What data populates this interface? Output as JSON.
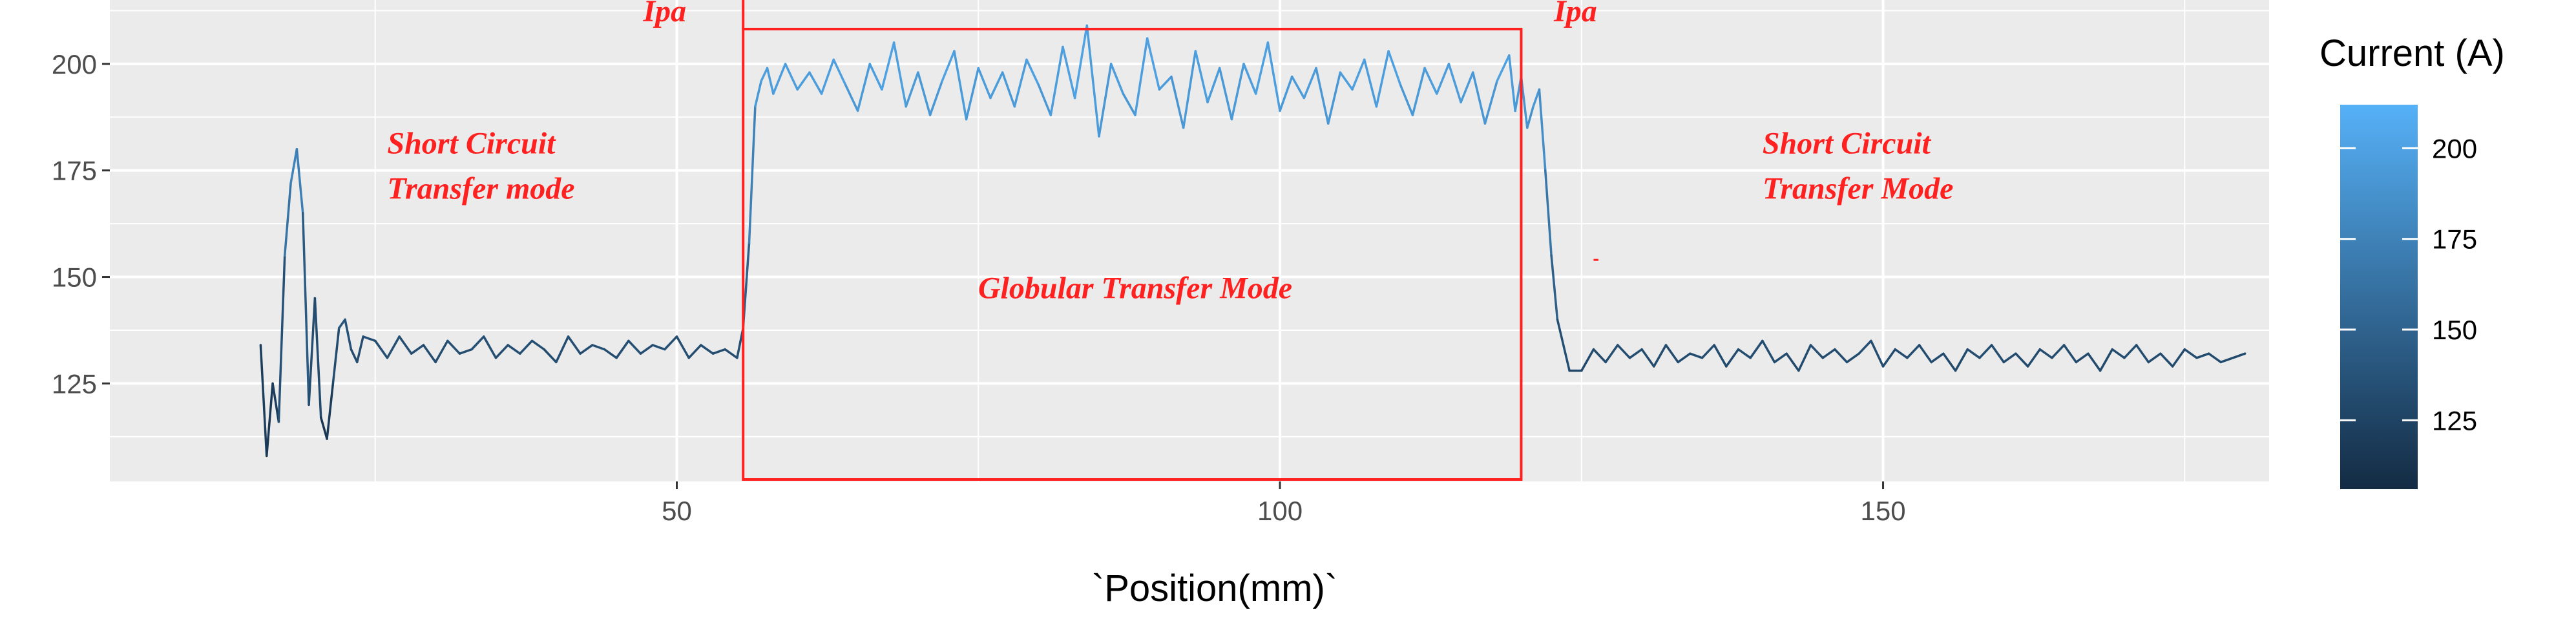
{
  "chart_data": {
    "type": "line",
    "xlabel": "`Position(mm)`",
    "ylabel": "",
    "xlim": [
      3,
      182
    ],
    "ylim": [
      102,
      215
    ],
    "x_ticks": [
      50,
      100,
      150
    ],
    "y_ticks": [
      125,
      150,
      175,
      200
    ],
    "grid": true,
    "color_scale": {
      "title": "Current (A)",
      "ticks": [
        125,
        150,
        175,
        200
      ],
      "range": [
        106,
        212
      ],
      "low_color": "#132b43",
      "high_color": "#56b1f7",
      "placement": "right"
    },
    "annotation_color": "#ff2020",
    "annotations": [
      {
        "text_lines": [
          "Ipa"
        ],
        "x": 49,
        "y": 210,
        "anchor": "middle"
      },
      {
        "text_lines": [
          "Ipa"
        ],
        "x": 124.5,
        "y": 210,
        "anchor": "middle"
      },
      {
        "text_lines": [
          "Short Circuit",
          "Transfer mode"
        ],
        "x": 26,
        "y": 179,
        "anchor": "start"
      },
      {
        "text_lines": [
          "Globular Transfer Mode"
        ],
        "x": 88,
        "y": 145,
        "anchor": "middle"
      },
      {
        "text_lines": [
          "Short Circuit",
          "Transfer Mode"
        ],
        "x": 140,
        "y": 179,
        "anchor": "start"
      }
    ],
    "highlight_box": {
      "x0": 55.5,
      "x1": 120,
      "y0": 216,
      "y1": 102
    },
    "divider_x": 55.5,
    "series": [
      {
        "x": [
          15.5,
          16,
          16.5,
          17,
          17.5,
          18,
          18.5,
          19,
          19.5,
          20,
          20.5,
          21,
          21.5,
          22,
          22.5,
          23,
          23.5,
          24,
          25,
          26,
          27,
          28,
          29,
          30,
          31,
          32,
          33,
          34,
          35,
          36,
          37,
          38,
          39,
          40,
          41,
          42,
          43,
          44,
          45,
          46,
          47,
          48,
          49,
          50,
          51,
          52,
          53,
          54,
          55,
          55.5,
          56,
          56.5,
          57,
          57.5,
          58,
          59,
          60,
          61,
          62,
          63,
          64,
          65,
          66,
          67,
          68,
          69,
          70,
          71,
          72,
          73,
          74,
          75,
          76,
          77,
          78,
          79,
          80,
          81,
          82,
          83,
          84,
          85,
          86,
          87,
          88,
          89,
          90,
          91,
          92,
          93,
          94,
          95,
          96,
          97,
          98,
          99,
          100,
          101,
          102,
          103,
          104,
          105,
          106,
          107,
          108,
          109,
          110,
          111,
          112,
          113,
          114,
          115,
          116,
          117,
          118,
          119,
          119.5,
          120,
          120.5,
          121,
          121.5,
          122,
          122.5,
          123,
          124,
          125,
          126,
          127,
          128,
          129,
          130,
          131,
          132,
          133,
          134,
          135,
          136,
          137,
          138,
          139,
          140,
          141,
          142,
          143,
          144,
          145,
          146,
          147,
          148,
          149,
          150,
          151,
          152,
          153,
          154,
          155,
          156,
          157,
          158,
          159,
          160,
          161,
          162,
          163,
          164,
          165,
          166,
          167,
          168,
          169,
          170,
          171,
          172,
          173,
          174,
          175,
          176,
          177,
          178,
          179,
          180
        ],
        "y": [
          134,
          108,
          125,
          116,
          155,
          172,
          180,
          165,
          120,
          145,
          117,
          112,
          125,
          138,
          140,
          133,
          130,
          136,
          135,
          131,
          136,
          132,
          134,
          130,
          135,
          132,
          133,
          136,
          131,
          134,
          132,
          135,
          133,
          130,
          136,
          132,
          134,
          133,
          131,
          135,
          132,
          134,
          133,
          136,
          131,
          134,
          132,
          133,
          131,
          138,
          158,
          190,
          196,
          199,
          193,
          200,
          194,
          198,
          193,
          201,
          195,
          189,
          200,
          194,
          205,
          190,
          198,
          188,
          196,
          203,
          187,
          199,
          192,
          198,
          190,
          201,
          195,
          188,
          204,
          192,
          209,
          183,
          200,
          193,
          188,
          206,
          194,
          197,
          185,
          203,
          191,
          199,
          187,
          200,
          193,
          205,
          189,
          197,
          192,
          199,
          186,
          198,
          194,
          201,
          190,
          203,
          195,
          188,
          199,
          193,
          200,
          191,
          198,
          186,
          196,
          202,
          189,
          197,
          185,
          190,
          194,
          175,
          155,
          140,
          128,
          128,
          133,
          130,
          134,
          131,
          133,
          129,
          134,
          130,
          132,
          131,
          134,
          129,
          133,
          131,
          135,
          130,
          132,
          128,
          134,
          131,
          133,
          130,
          132,
          135,
          129,
          133,
          131,
          134,
          130,
          132,
          128,
          133,
          131,
          134,
          130,
          132,
          129,
          133,
          131,
          134,
          130,
          132,
          128,
          133,
          131,
          134,
          130,
          132,
          129,
          133,
          131,
          132,
          130,
          131,
          132
        ]
      }
    ]
  }
}
